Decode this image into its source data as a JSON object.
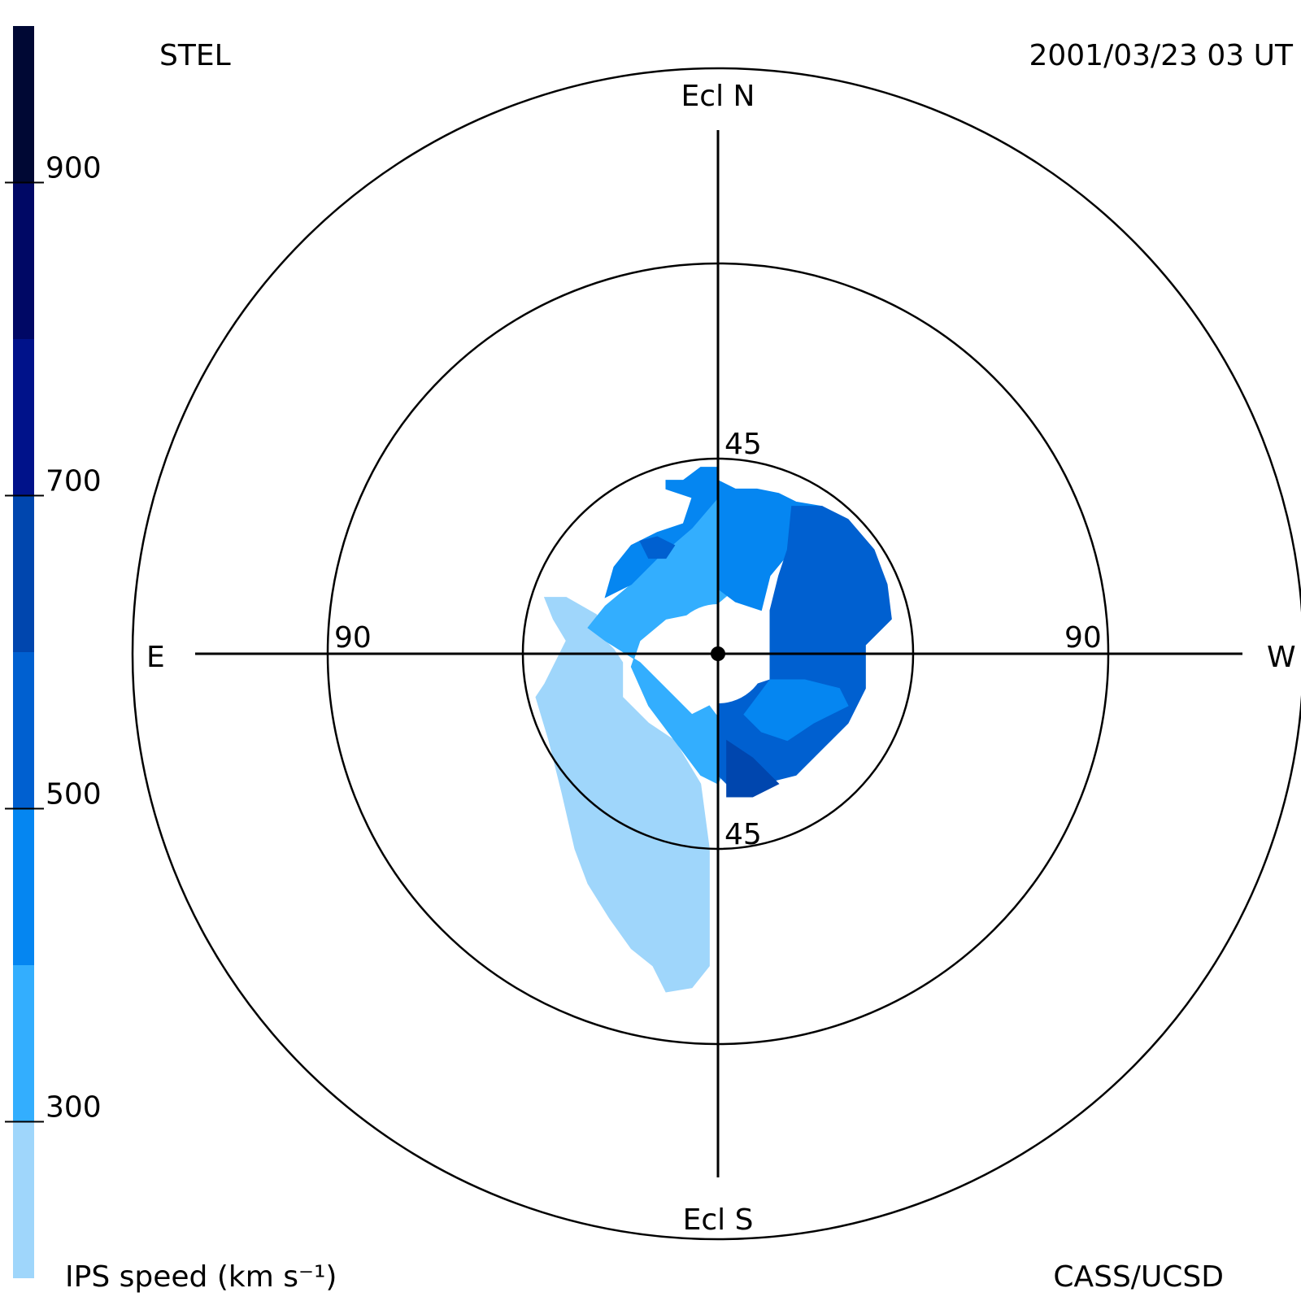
{
  "header": {
    "left_label": "STEL",
    "right_label": "2001/03/23 03 UT",
    "bottom_left_label": "IPS speed (km s⁻¹)",
    "bottom_right_label": "CASS/UCSD"
  },
  "chart_data": {
    "type": "heatmap",
    "projection": "fisheye sky map centered on the Sun",
    "direction_labels": {
      "north": "Ecl N",
      "south": "Ecl S",
      "east": "E",
      "west": "W"
    },
    "elongation_rings": [
      45,
      90
    ],
    "ring_labels": [
      {
        "text": "45",
        "ring": 45,
        "side": "north"
      },
      {
        "text": "45",
        "ring": 45,
        "side": "south"
      },
      {
        "text": "90",
        "ring": 90,
        "side": "east"
      },
      {
        "text": "90",
        "ring": 90,
        "side": "west"
      }
    ],
    "max_elongation": 90,
    "colorbar": {
      "label": "IPS speed (km s⁻¹)",
      "range": [
        200,
        1000
      ],
      "tick_values": [
        300,
        500,
        700,
        900
      ],
      "tick_labels": [
        "300",
        "500",
        "700",
        "900"
      ],
      "bins": [
        {
          "from": 200,
          "to": 300,
          "color": "#9fd6fb"
        },
        {
          "from": 300,
          "to": 400,
          "color": "#33aefe"
        },
        {
          "from": 400,
          "to": 500,
          "color": "#0586f1"
        },
        {
          "from": 500,
          "to": 600,
          "color": "#0060d0"
        },
        {
          "from": 600,
          "to": 700,
          "color": "#0046ae"
        },
        {
          "from": 700,
          "to": 800,
          "color": "#00128a"
        },
        {
          "from": 800,
          "to": 900,
          "color": "#000865"
        },
        {
          "from": 900,
          "to": 1000,
          "color": "#000834"
        }
      ]
    },
    "regions": [
      {
        "name": "south-east lobe",
        "speed_bin": [
          200,
          300
        ],
        "color": "#9fd6fb",
        "polygon": [
          [
            -40,
            13
          ],
          [
            -38,
            8
          ],
          [
            -35,
            3
          ],
          [
            -40,
            -7
          ],
          [
            -42,
            -10
          ],
          [
            -39,
            -20
          ],
          [
            -36,
            -32
          ],
          [
            -33,
            -45
          ],
          [
            -30,
            -53
          ],
          [
            -25,
            -61
          ],
          [
            -20,
            -68
          ],
          [
            -15,
            -72
          ],
          [
            -12,
            -78
          ],
          [
            -6,
            -77
          ],
          [
            -2,
            -72
          ],
          [
            -2,
            -45
          ],
          [
            -4,
            -30
          ],
          [
            -10,
            -20
          ],
          [
            -16,
            -16
          ],
          [
            -22,
            -10
          ],
          [
            -22,
            -2
          ],
          [
            -24,
            1
          ],
          [
            -26,
            3
          ],
          [
            -28,
            9
          ],
          [
            -35,
            13
          ]
        ]
      },
      {
        "name": "east inner band",
        "speed_bin": [
          300,
          400
        ],
        "color": "#33aefe",
        "polygon": [
          [
            -30,
            6
          ],
          [
            -26,
            11
          ],
          [
            -20,
            16
          ],
          [
            -13,
            23
          ],
          [
            -6,
            29
          ],
          [
            0,
            36
          ],
          [
            3,
            33
          ],
          [
            4,
            15
          ],
          [
            -2,
            10
          ],
          [
            -12,
            8
          ],
          [
            -18,
            3
          ],
          [
            -20,
            -3
          ],
          [
            -16,
            -12
          ],
          [
            -10,
            -20
          ],
          [
            -4,
            -28
          ],
          [
            0,
            -30
          ],
          [
            4,
            -20
          ],
          [
            -2,
            -12
          ],
          [
            -6,
            -14
          ],
          [
            -10,
            -10
          ],
          [
            -18,
            -2
          ],
          [
            -26,
            3
          ]
        ]
      },
      {
        "name": "north-east wedge",
        "speed_bin": [
          400,
          500
        ],
        "color": "#0586f1",
        "polygon": [
          [
            -26,
            13
          ],
          [
            -24,
            20
          ],
          [
            -20,
            25
          ],
          [
            -14,
            28
          ],
          [
            -8,
            30
          ],
          [
            -6,
            36
          ],
          [
            -12,
            38
          ],
          [
            -12,
            40
          ],
          [
            -8,
            40
          ],
          [
            -4,
            43
          ],
          [
            0,
            43
          ],
          [
            0,
            36
          ],
          [
            -6,
            29
          ],
          [
            -13,
            23
          ],
          [
            -20,
            16
          ]
        ]
      },
      {
        "name": "north cap",
        "speed_bin": [
          400,
          500
        ],
        "color": "#0586f1",
        "polygon": [
          [
            0,
            40
          ],
          [
            4,
            38
          ],
          [
            9,
            38
          ],
          [
            14,
            37
          ],
          [
            18,
            35
          ],
          [
            24,
            34
          ],
          [
            26,
            32
          ],
          [
            20,
            28
          ],
          [
            17,
            24
          ],
          [
            12,
            18
          ],
          [
            10,
            10
          ],
          [
            4,
            12
          ],
          [
            0,
            15
          ]
        ]
      },
      {
        "name": "north-west body",
        "speed_bin": [
          500,
          600
        ],
        "color": "#0060d0",
        "polygon": [
          [
            17,
            34
          ],
          [
            24,
            34
          ],
          [
            30,
            31
          ],
          [
            36,
            24
          ],
          [
            39,
            16
          ],
          [
            40,
            8
          ],
          [
            34,
            2
          ],
          [
            34,
            -8
          ],
          [
            30,
            -16
          ],
          [
            24,
            -22
          ],
          [
            18,
            -28
          ],
          [
            10,
            -30
          ],
          [
            4,
            -32
          ],
          [
            0,
            -28
          ],
          [
            0,
            -10
          ],
          [
            12,
            -6
          ],
          [
            12,
            2
          ],
          [
            12,
            10
          ],
          [
            14,
            18
          ],
          [
            16,
            24
          ]
        ]
      },
      {
        "name": "south-west mottled band",
        "speed_bin": [
          400,
          500
        ],
        "color": "#0586f1",
        "polygon": [
          [
            12,
            -6
          ],
          [
            20,
            -6
          ],
          [
            28,
            -8
          ],
          [
            30,
            -12
          ],
          [
            22,
            -16
          ],
          [
            16,
            -20
          ],
          [
            10,
            -18
          ],
          [
            6,
            -14
          ]
        ]
      },
      {
        "name": "south-west inner patch",
        "speed_bin": [
          600,
          700
        ],
        "color": "#0046ae",
        "polygon": [
          [
            2,
            -20
          ],
          [
            8,
            -24
          ],
          [
            14,
            -30
          ],
          [
            8,
            -33
          ],
          [
            2,
            -33
          ]
        ]
      },
      {
        "name": "north-east patch",
        "speed_bin": [
          500,
          600
        ],
        "color": "#0060d0",
        "polygon": [
          [
            -18,
            26
          ],
          [
            -14,
            27
          ],
          [
            -10,
            25
          ],
          [
            -12,
            22
          ],
          [
            -16,
            22
          ]
        ]
      }
    ]
  }
}
